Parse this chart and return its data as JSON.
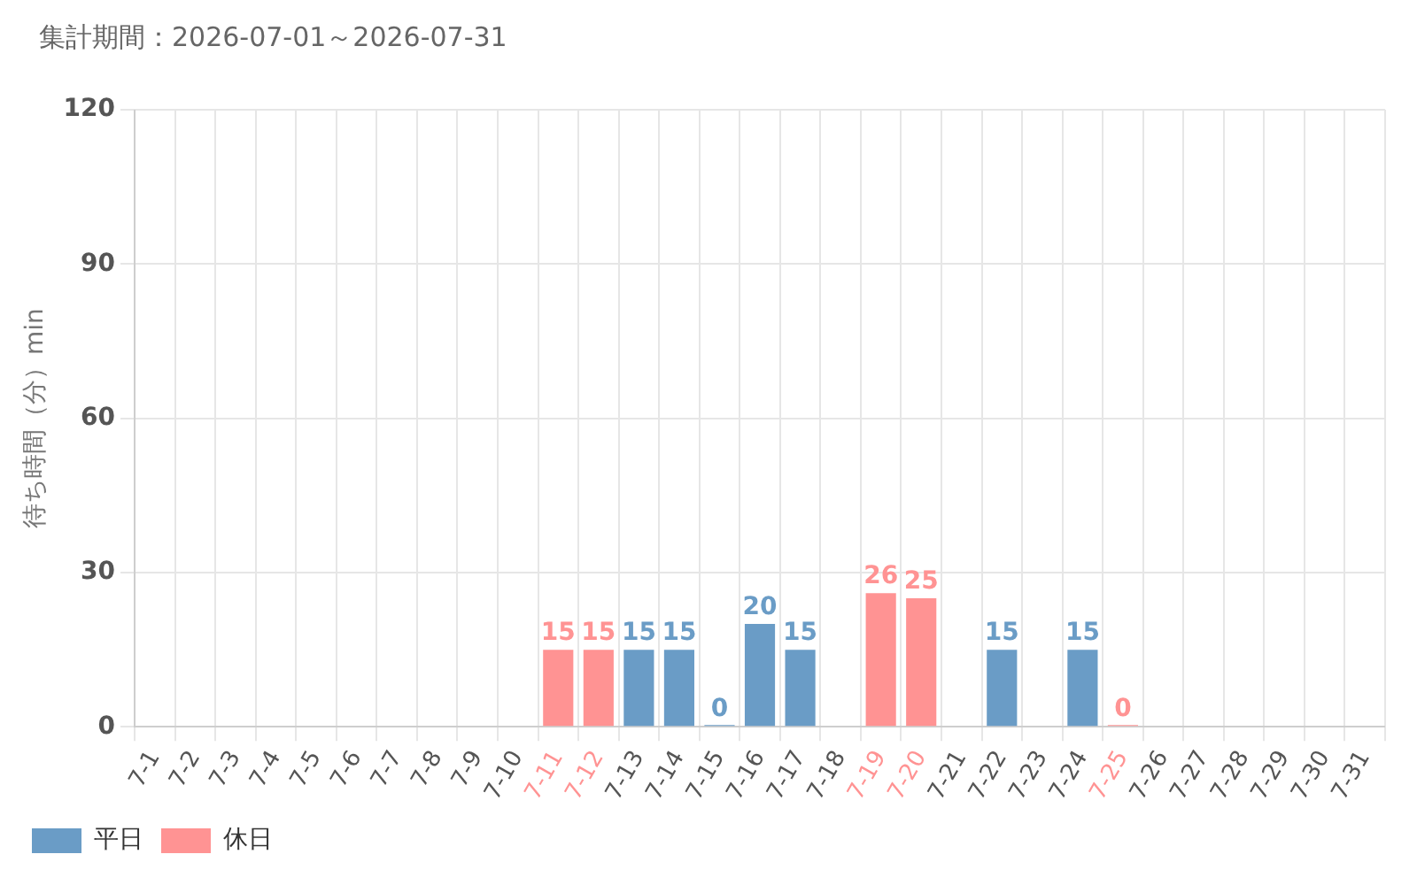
{
  "chart_data": {
    "type": "bar",
    "title": "集計期間：2026-07-01～2026-07-31",
    "ylabel": "待ち時間（分）min",
    "categories": [
      "7-1",
      "7-2",
      "7-3",
      "7-4",
      "7-5",
      "7-6",
      "7-7",
      "7-8",
      "7-9",
      "7-10",
      "7-11",
      "7-12",
      "7-13",
      "7-14",
      "7-15",
      "7-16",
      "7-17",
      "7-18",
      "7-19",
      "7-20",
      "7-21",
      "7-22",
      "7-23",
      "7-24",
      "7-25",
      "7-26",
      "7-27",
      "7-28",
      "7-29",
      "7-30",
      "7-31"
    ],
    "series": [
      {
        "name": "平日",
        "color": "#6a9cc6",
        "values": [
          null,
          null,
          null,
          null,
          null,
          null,
          null,
          null,
          null,
          null,
          null,
          null,
          15,
          15,
          0,
          20,
          15,
          null,
          null,
          null,
          null,
          15,
          null,
          15,
          null,
          null,
          null,
          null,
          null,
          null,
          null
        ]
      },
      {
        "name": "休日",
        "color": "#ff9393",
        "values": [
          null,
          null,
          null,
          null,
          null,
          null,
          null,
          null,
          null,
          null,
          15,
          15,
          null,
          null,
          null,
          null,
          null,
          null,
          26,
          25,
          null,
          null,
          null,
          null,
          0,
          null,
          null,
          null,
          null,
          null,
          null
        ]
      }
    ],
    "ylim": [
      0,
      120
    ],
    "yticks": [
      0,
      30,
      60,
      90,
      120
    ],
    "grid": true,
    "legend": "bottom left",
    "data_labels": true
  }
}
